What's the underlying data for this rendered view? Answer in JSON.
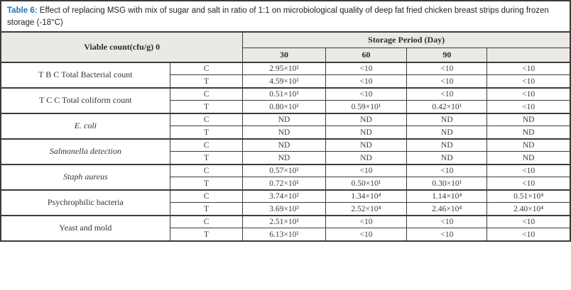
{
  "caption": {
    "label": "Table 6:",
    "text": " Effect of replacing MSG with mix of sugar and salt in ratio of 1:1 on microbiological quality of deep fat fried chicken breast strips during frozen storage (-18°C)"
  },
  "colors": {
    "caption_label_blue": "#2273b8",
    "header_bg": "#ebe9e6",
    "border": "#3b3b3b",
    "body_text": "#3a3a3a"
  },
  "table": {
    "header": {
      "viable_count_label": "Viable count(cfu/g) 0",
      "storage_period_label": "Storage Period (Day)",
      "days": [
        "30",
        "60",
        "90",
        ""
      ]
    },
    "groups": [
      {
        "label": "T B C Total Bacterial count",
        "rows": [
          {
            "treatment": "C",
            "values": [
              "2.95×10¹",
              "<10",
              "<10",
              "<10"
            ]
          },
          {
            "treatment": "T",
            "values": [
              "4.59×10¹",
              "<10",
              "<10",
              "<10"
            ]
          }
        ]
      },
      {
        "label": "T C C Total coliform count",
        "rows": [
          {
            "treatment": "C",
            "values": [
              "0.51×10¹",
              "<10",
              "<10",
              "<10"
            ]
          },
          {
            "treatment": "T",
            "values": [
              "0.80×10¹",
              "0.59×10¹",
              "0.42×10¹",
              "<10"
            ]
          }
        ]
      },
      {
        "label": "E. coli",
        "rows": [
          {
            "treatment": "C",
            "values": [
              "ND",
              "ND",
              "ND",
              "ND"
            ]
          },
          {
            "treatment": "T",
            "values": [
              "ND",
              "ND",
              "ND",
              "ND"
            ]
          }
        ]
      },
      {
        "label": "Salmonella detection",
        "rows": [
          {
            "treatment": "C",
            "values": [
              "ND",
              "ND",
              "ND",
              "ND"
            ]
          },
          {
            "treatment": "T",
            "values": [
              "ND",
              "ND",
              "ND",
              "ND"
            ]
          }
        ]
      },
      {
        "label": "Staph aureus",
        "rows": [
          {
            "treatment": "C",
            "values": [
              "0.57×10¹",
              "<10",
              "<10",
              "<10"
            ]
          },
          {
            "treatment": "T",
            "values": [
              "0.72×10¹",
              "0.50×10¹",
              "0.30×10¹",
              "<10"
            ]
          }
        ]
      },
      {
        "label": "Psychrophilic bacteria",
        "rows": [
          {
            "treatment": "C",
            "values": [
              "3.74×10²",
              "1.34×10⁴",
              "1.14×10⁴",
              "0.51×10⁴"
            ]
          },
          {
            "treatment": "T",
            "values": [
              "3.69×10³",
              "2.52×10⁴",
              "2.46×10⁴",
              "2.40×10⁴"
            ]
          }
        ]
      },
      {
        "label": "Yeast and mold",
        "rows": [
          {
            "treatment": "C",
            "values": [
              "2.51×10¹",
              "<10",
              "<10",
              "<10"
            ]
          },
          {
            "treatment": "T",
            "values": [
              "6.13×10¹",
              "<10",
              "<10",
              "<10"
            ]
          }
        ]
      }
    ]
  }
}
